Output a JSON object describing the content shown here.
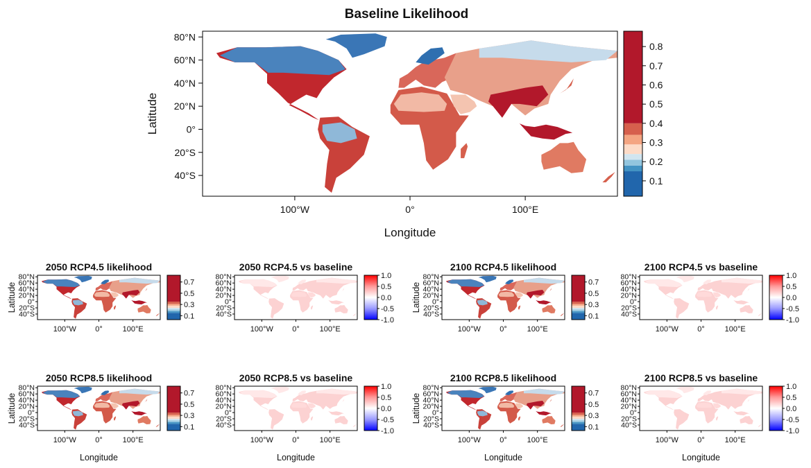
{
  "main": {
    "title": "Baseline Likelihood",
    "xlabel": "Longitude",
    "ylabel": "Latitude",
    "lat_ticks": [
      "80°N",
      "60°N",
      "40°N",
      "20°N",
      "0°",
      "20°S",
      "40°S"
    ],
    "lon_ticks": [
      "100°W",
      "0°",
      "100°E"
    ],
    "colorbar_ticks": [
      "0.1",
      "0.2",
      "0.3",
      "0.4",
      "0.5",
      "0.6",
      "0.7",
      "0.8"
    ],
    "colorbar_colors": [
      "#2166ac",
      "#4393c3",
      "#92c5de",
      "#d1e5f0",
      "#fddbc7",
      "#f4a582",
      "#d6604d",
      "#b2182b"
    ]
  },
  "panels": [
    {
      "title": "2050 RCP4.5 likelihood",
      "kind": "likelihood",
      "ylabel": "Latitude",
      "xlabel": ""
    },
    {
      "title": "2050 RCP4.5 vs baseline",
      "kind": "diff",
      "ylabel": "",
      "xlabel": ""
    },
    {
      "title": "2100 RCP4.5 likelihood",
      "kind": "likelihood",
      "ylabel": "Latitude",
      "xlabel": ""
    },
    {
      "title": "2100 RCP4.5 vs baseline",
      "kind": "diff",
      "ylabel": "",
      "xlabel": ""
    },
    {
      "title": "2050 RCP8.5 likelihood",
      "kind": "likelihood",
      "ylabel": "Latitude",
      "xlabel": "Longitude"
    },
    {
      "title": "2050 RCP8.5 vs baseline",
      "kind": "diff",
      "ylabel": "",
      "xlabel": "Longitude"
    },
    {
      "title": "2100 RCP8.5 likelihood",
      "kind": "likelihood",
      "ylabel": "Latitude",
      "xlabel": "Longitude"
    },
    {
      "title": "2100 RCP8.5 vs baseline",
      "kind": "diff",
      "ylabel": "",
      "xlabel": "Longitude"
    }
  ],
  "small": {
    "lat_ticks": [
      "80°N",
      "60°N",
      "40°N",
      "20°N",
      "0°",
      "20°S",
      "40°S"
    ],
    "lon_ticks": [
      "100°W",
      "0°",
      "100°E"
    ],
    "likelihood_ticks": [
      "0.1",
      "0.3",
      "0.5",
      "0.7"
    ],
    "diff_ticks": [
      "1.0",
      "0.5",
      "0.0",
      "-0.5",
      "-1.0"
    ]
  }
}
